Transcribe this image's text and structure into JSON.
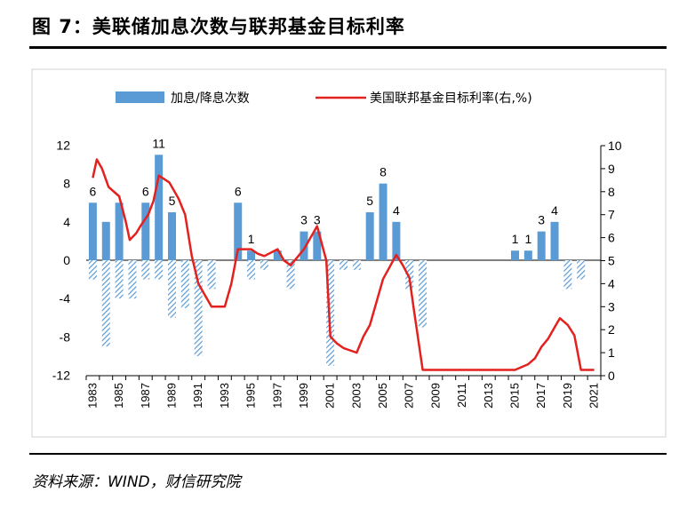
{
  "figure": {
    "title": "图 7：美联储加息次数与联邦基金目标利率",
    "source": "资料来源：WIND，财信研究院"
  },
  "chart_data": {
    "type": "bar+line",
    "years": [
      1983,
      1984,
      1985,
      1986,
      1987,
      1988,
      1989,
      1990,
      1991,
      1992,
      1993,
      1994,
      1995,
      1996,
      1997,
      1998,
      1999,
      2000,
      2001,
      2002,
      2003,
      2004,
      2005,
      2006,
      2007,
      2008,
      2009,
      2010,
      2011,
      2012,
      2013,
      2014,
      2015,
      2016,
      2017,
      2018,
      2019,
      2020,
      2021
    ],
    "x_tick_labels": [
      "1983",
      "1985",
      "1987",
      "1989",
      "1991",
      "1993",
      "1995",
      "1997",
      "1999",
      "2001",
      "2003",
      "2005",
      "2007",
      "2009",
      "2011",
      "2013",
      "2015",
      "2017",
      "2019",
      "2021"
    ],
    "hikes": [
      6,
      4,
      6,
      0,
      6,
      11,
      5,
      0,
      0,
      0,
      0,
      6,
      1,
      0,
      1,
      0,
      3,
      3,
      0,
      0,
      0,
      5,
      8,
      4,
      0,
      0,
      0,
      0,
      0,
      0,
      0,
      0,
      1,
      1,
      3,
      4,
      0,
      0,
      0
    ],
    "hike_labels": [
      {
        "year": 1983,
        "text": "6"
      },
      {
        "year": 1987,
        "text": "6"
      },
      {
        "year": 1988,
        "text": "11"
      },
      {
        "year": 1989,
        "text": "5"
      },
      {
        "year": 1994,
        "text": "6"
      },
      {
        "year": 1995,
        "text": "1"
      },
      {
        "year": 1999,
        "text": "3"
      },
      {
        "year": 2000,
        "text": "3"
      },
      {
        "year": 2004,
        "text": "5"
      },
      {
        "year": 2005,
        "text": "8"
      },
      {
        "year": 2006,
        "text": "4"
      },
      {
        "year": 2015,
        "text": "1"
      },
      {
        "year": 2016,
        "text": "1"
      },
      {
        "year": 2017,
        "text": "3"
      },
      {
        "year": 2018,
        "text": "4"
      }
    ],
    "cuts": [
      -2,
      -9,
      -4,
      -4,
      -2,
      -2,
      -6,
      -5,
      -10,
      -3,
      0,
      0,
      -2,
      -1,
      0,
      -3,
      0,
      0,
      -11,
      -1,
      -1,
      0,
      0,
      0,
      -3,
      -7,
      0,
      0,
      0,
      0,
      0,
      0,
      0,
      0,
      0,
      0,
      -3,
      -2,
      0
    ],
    "rate_series": [
      [
        1983.0,
        8.6
      ],
      [
        1983.3,
        9.4
      ],
      [
        1983.7,
        9.0
      ],
      [
        1984.2,
        8.2
      ],
      [
        1985.0,
        7.8
      ],
      [
        1985.5,
        6.7
      ],
      [
        1985.8,
        5.9
      ],
      [
        1986.3,
        6.2
      ],
      [
        1986.6,
        6.5
      ],
      [
        1987.2,
        7.0
      ],
      [
        1987.6,
        7.6
      ],
      [
        1988.0,
        8.7
      ],
      [
        1988.8,
        8.4
      ],
      [
        1989.0,
        8.2
      ],
      [
        1989.5,
        7.7
      ],
      [
        1990.0,
        7.0
      ],
      [
        1990.5,
        5.2
      ],
      [
        1991.0,
        4.0
      ],
      [
        1991.5,
        3.5
      ],
      [
        1992.0,
        3.0
      ],
      [
        1993.0,
        3.0
      ],
      [
        1993.5,
        4.0
      ],
      [
        1994.0,
        5.5
      ],
      [
        1995.0,
        5.5
      ],
      [
        1995.5,
        5.3
      ],
      [
        1996.0,
        5.2
      ],
      [
        1997.0,
        5.5
      ],
      [
        1997.5,
        5.0
      ],
      [
        1998.0,
        4.8
      ],
      [
        1999.0,
        5.5
      ],
      [
        1999.5,
        6.0
      ],
      [
        2000.0,
        6.5
      ],
      [
        2000.7,
        5.0
      ],
      [
        2001.0,
        1.7
      ],
      [
        2001.5,
        1.4
      ],
      [
        2002.0,
        1.2
      ],
      [
        2002.5,
        1.1
      ],
      [
        2003.0,
        1.0
      ],
      [
        2003.5,
        1.7
      ],
      [
        2004.0,
        2.2
      ],
      [
        2005.0,
        4.2
      ],
      [
        2006.0,
        5.25
      ],
      [
        2006.5,
        4.8
      ],
      [
        2007.0,
        4.25
      ],
      [
        2007.3,
        3.0
      ],
      [
        2008.0,
        0.25
      ],
      [
        2015.0,
        0.25
      ],
      [
        2016.0,
        0.5
      ],
      [
        2016.5,
        0.75
      ],
      [
        2017.0,
        1.25
      ],
      [
        2017.5,
        1.6
      ],
      [
        2018.0,
        2.1
      ],
      [
        2018.4,
        2.5
      ],
      [
        2019.0,
        2.2
      ],
      [
        2019.5,
        1.75
      ],
      [
        2020.0,
        0.25
      ],
      [
        2021.0,
        0.25
      ]
    ],
    "y_left": {
      "min": -12,
      "max": 12,
      "ticks": [
        "-12",
        "-8",
        "-4",
        "0",
        "4",
        "8",
        "12"
      ]
    },
    "y_right": {
      "min": 0,
      "max": 10,
      "ticks": [
        "0",
        "1",
        "2",
        "3",
        "4",
        "5",
        "6",
        "7",
        "8",
        "9",
        "10"
      ]
    },
    "legend": {
      "bar_label": "加息/降息次数",
      "line_label": "美国联邦基金目标利率(右,%)"
    },
    "colors": {
      "hike_bar": "#5b9bd5",
      "cut_bar": "#5b9bd5",
      "rate_line": "#e3211e",
      "frame": "#d0d0d0"
    }
  }
}
